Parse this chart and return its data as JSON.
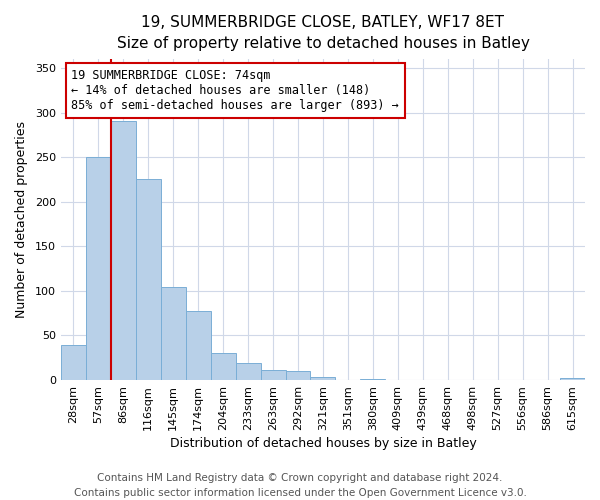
{
  "title": "19, SUMMERBRIDGE CLOSE, BATLEY, WF17 8ET",
  "subtitle": "Size of property relative to detached houses in Batley",
  "xlabel": "Distribution of detached houses by size in Batley",
  "ylabel": "Number of detached properties",
  "categories": [
    "28sqm",
    "57sqm",
    "86sqm",
    "116sqm",
    "145sqm",
    "174sqm",
    "204sqm",
    "233sqm",
    "263sqm",
    "292sqm",
    "321sqm",
    "351sqm",
    "380sqm",
    "409sqm",
    "439sqm",
    "468sqm",
    "498sqm",
    "527sqm",
    "556sqm",
    "586sqm",
    "615sqm"
  ],
  "values": [
    39,
    250,
    291,
    225,
    104,
    78,
    30,
    19,
    11,
    10,
    4,
    0,
    1,
    0,
    0,
    0,
    0,
    0,
    0,
    0,
    2
  ],
  "bar_color": "#b8d0e8",
  "bar_edge_color": "#7aaed6",
  "vline_x_index": 1,
  "vline_color": "#cc0000",
  "annotation_text": "19 SUMMERBRIDGE CLOSE: 74sqm\n← 14% of detached houses are smaller (148)\n85% of semi-detached houses are larger (893) →",
  "annotation_box_facecolor": "#ffffff",
  "annotation_box_edgecolor": "#cc0000",
  "ylim": [
    0,
    360
  ],
  "yticks": [
    0,
    50,
    100,
    150,
    200,
    250,
    300,
    350
  ],
  "footer1": "Contains HM Land Registry data © Crown copyright and database right 2024.",
  "footer2": "Contains public sector information licensed under the Open Government Licence v3.0.",
  "plot_background_color": "#ffffff",
  "fig_background_color": "#ffffff",
  "grid_color": "#d0d8e8",
  "title_fontsize": 11,
  "label_fontsize": 9,
  "tick_fontsize": 8,
  "footer_fontsize": 7.5
}
